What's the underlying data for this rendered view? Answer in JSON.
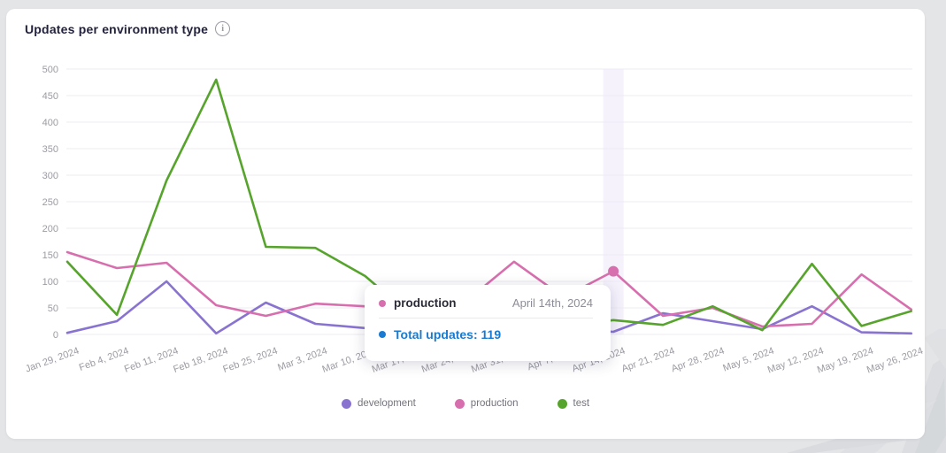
{
  "card": {
    "title": "Updates per environment type",
    "info_icon": "i"
  },
  "chart_data": {
    "type": "line",
    "x": [
      "Jan 29, 2024",
      "Feb 4, 2024",
      "Feb 11, 2024",
      "Feb 18, 2024",
      "Feb 25, 2024",
      "Mar 3, 2024",
      "Mar 10, 2024",
      "Mar 17, 2024",
      "Mar 24, 2024",
      "Mar 31, 2024",
      "Apr 7, 2024",
      "Apr 14, 2024",
      "Apr 21, 2024",
      "Apr 28, 2024",
      "May 5, 2024",
      "May 12, 2024",
      "May 19, 2024",
      "May 26, 2024"
    ],
    "series": [
      {
        "name": "development",
        "color": "#8973d1",
        "values": [
          3,
          25,
          100,
          2,
          60,
          20,
          12,
          8,
          12,
          6,
          10,
          5,
          40,
          25,
          10,
          53,
          4,
          2
        ]
      },
      {
        "name": "production",
        "color": "#d76fae",
        "values": [
          155,
          125,
          135,
          55,
          35,
          58,
          53,
          45,
          60,
          137,
          70,
          119,
          35,
          50,
          15,
          20,
          113,
          47
        ]
      },
      {
        "name": "test",
        "color": "#57a42d",
        "values": [
          137,
          37,
          290,
          480,
          165,
          163,
          110,
          30,
          18,
          22,
          15,
          27,
          18,
          53,
          8,
          133,
          16,
          44
        ]
      }
    ],
    "ylim": [
      0,
      500
    ],
    "ytick_step": 50,
    "grid": true,
    "legend_position": "bottom",
    "highlight": {
      "series": "production",
      "x_index": 11,
      "value": 119,
      "band_color": "#ece8f9"
    }
  },
  "tooltip": {
    "series": "production",
    "date": "April 14th, 2024",
    "total_text": "Total updates: 119",
    "accent_color": "#187bd1"
  },
  "style_colors": {
    "grid_line": "#ededf2",
    "axis_text": "#9b9ba3",
    "title_text": "#22223e"
  }
}
